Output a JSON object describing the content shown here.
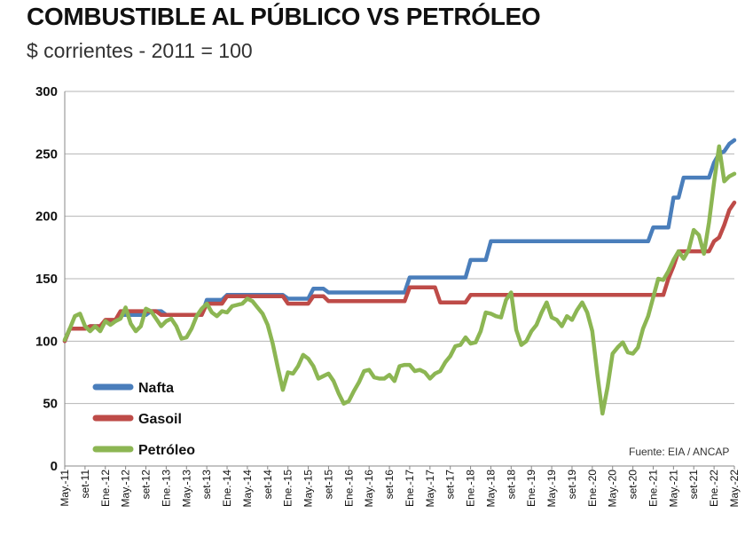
{
  "title": "COMBUSTIBLE AL PÚBLICO VS PETRÓLEO",
  "subtitle": "$ corrientes - 2011 = 100",
  "source": "Fuente: EIA / ANCAP",
  "chart_data": {
    "type": "line",
    "ylim": [
      0,
      300
    ],
    "yticks": [
      0,
      50,
      100,
      150,
      200,
      250,
      300
    ],
    "xlim": [
      "2011-05",
      "2022-05"
    ],
    "xtick_labels": [
      "May.-11",
      "set-11",
      "Ene.-12",
      "May.-12",
      "set-12",
      "Ene.-13",
      "May.-13",
      "set-13",
      "Ene.-14",
      "May.-14",
      "set-14",
      "Ene.-15",
      "May.-15",
      "set-15",
      "Ene.-16",
      "May.-16",
      "set-16",
      "Ene.-17",
      "May.-17",
      "set-17",
      "Ene.-18",
      "May.-18",
      "set-18",
      "Ene.-19",
      "May.-19",
      "set-19",
      "Ene.-20",
      "May.-20",
      "set-20",
      "Ene.-21",
      "May.-21",
      "set-21",
      "Ene.-22",
      "May.-22"
    ],
    "grid": true,
    "legend_position": "bottom-left",
    "series": [
      {
        "name": "Nafta",
        "color": "#4a7ebb",
        "points": [
          [
            "2011-05",
            100
          ],
          [
            "2011-06",
            110
          ],
          [
            "2011-09",
            110
          ],
          [
            "2011-10",
            112
          ],
          [
            "2011-12",
            112
          ],
          [
            "2012-01",
            116
          ],
          [
            "2012-03",
            116
          ],
          [
            "2012-04",
            121
          ],
          [
            "2012-09",
            121
          ],
          [
            "2012-10",
            124
          ],
          [
            "2012-12",
            124
          ],
          [
            "2013-01",
            121
          ],
          [
            "2013-08",
            121
          ],
          [
            "2013-09",
            133
          ],
          [
            "2013-12",
            133
          ],
          [
            "2014-01",
            137
          ],
          [
            "2014-12",
            137
          ],
          [
            "2015-01",
            134
          ],
          [
            "2015-05",
            134
          ],
          [
            "2015-06",
            142
          ],
          [
            "2015-08",
            142
          ],
          [
            "2015-09",
            139
          ],
          [
            "2016-12",
            139
          ],
          [
            "2017-01",
            151
          ],
          [
            "2017-12",
            151
          ],
          [
            "2018-01",
            165
          ],
          [
            "2018-04",
            165
          ],
          [
            "2018-05",
            180
          ],
          [
            "2020-12",
            180
          ],
          [
            "2021-01",
            191
          ],
          [
            "2021-04",
            191
          ],
          [
            "2021-05",
            215
          ],
          [
            "2021-06",
            215
          ],
          [
            "2021-07",
            231
          ],
          [
            "2021-12",
            231
          ],
          [
            "2022-01",
            243
          ],
          [
            "2022-02",
            250
          ],
          [
            "2022-03",
            252
          ],
          [
            "2022-04",
            258
          ],
          [
            "2022-05",
            261
          ]
        ]
      },
      {
        "name": "Gasoil",
        "color": "#be4b48",
        "points": [
          [
            "2011-05",
            100
          ],
          [
            "2011-06",
            110
          ],
          [
            "2011-09",
            110
          ],
          [
            "2011-10",
            112
          ],
          [
            "2011-12",
            112
          ],
          [
            "2012-01",
            117
          ],
          [
            "2012-03",
            117
          ],
          [
            "2012-04",
            124
          ],
          [
            "2012-11",
            124
          ],
          [
            "2012-12",
            121
          ],
          [
            "2013-08",
            121
          ],
          [
            "2013-09",
            130
          ],
          [
            "2013-12",
            130
          ],
          [
            "2014-01",
            136
          ],
          [
            "2014-12",
            136
          ],
          [
            "2015-01",
            130
          ],
          [
            "2015-05",
            130
          ],
          [
            "2015-06",
            136
          ],
          [
            "2015-08",
            136
          ],
          [
            "2015-09",
            132
          ],
          [
            "2016-12",
            132
          ],
          [
            "2017-01",
            143
          ],
          [
            "2017-06",
            143
          ],
          [
            "2017-07",
            131
          ],
          [
            "2017-12",
            131
          ],
          [
            "2018-01",
            137
          ],
          [
            "2021-03",
            137
          ],
          [
            "2021-04",
            150
          ],
          [
            "2021-05",
            160
          ],
          [
            "2021-06",
            172
          ],
          [
            "2021-12",
            172
          ],
          [
            "2022-01",
            180
          ],
          [
            "2022-02",
            183
          ],
          [
            "2022-03",
            193
          ],
          [
            "2022-04",
            205
          ],
          [
            "2022-05",
            211
          ]
        ]
      },
      {
        "name": "Petróleo",
        "color": "#8cb653",
        "points": [
          [
            "2011-05",
            101
          ],
          [
            "2011-06",
            110
          ],
          [
            "2011-07",
            120
          ],
          [
            "2011-08",
            122
          ],
          [
            "2011-09",
            112
          ],
          [
            "2011-10",
            108
          ],
          [
            "2011-11",
            112
          ],
          [
            "2011-12",
            108
          ],
          [
            "2012-01",
            116
          ],
          [
            "2012-02",
            113
          ],
          [
            "2012-03",
            116
          ],
          [
            "2012-04",
            118
          ],
          [
            "2012-05",
            127
          ],
          [
            "2012-06",
            114
          ],
          [
            "2012-07",
            108
          ],
          [
            "2012-08",
            112
          ],
          [
            "2012-09",
            126
          ],
          [
            "2012-10",
            124
          ],
          [
            "2012-11",
            118
          ],
          [
            "2012-12",
            112
          ],
          [
            "2013-01",
            116
          ],
          [
            "2013-02",
            118
          ],
          [
            "2013-03",
            112
          ],
          [
            "2013-04",
            102
          ],
          [
            "2013-05",
            103
          ],
          [
            "2013-06",
            110
          ],
          [
            "2013-07",
            120
          ],
          [
            "2013-08",
            126
          ],
          [
            "2013-09",
            130
          ],
          [
            "2013-10",
            123
          ],
          [
            "2013-11",
            120
          ],
          [
            "2013-12",
            124
          ],
          [
            "2014-01",
            123
          ],
          [
            "2014-02",
            128
          ],
          [
            "2014-03",
            129
          ],
          [
            "2014-04",
            130
          ],
          [
            "2014-05",
            134
          ],
          [
            "2014-06",
            132
          ],
          [
            "2014-07",
            127
          ],
          [
            "2014-08",
            122
          ],
          [
            "2014-09",
            113
          ],
          [
            "2014-10",
            98
          ],
          [
            "2014-11",
            79
          ],
          [
            "2014-12",
            61
          ],
          [
            "2015-01",
            75
          ],
          [
            "2015-02",
            74
          ],
          [
            "2015-03",
            80
          ],
          [
            "2015-04",
            89
          ],
          [
            "2015-05",
            86
          ],
          [
            "2015-06",
            80
          ],
          [
            "2015-07",
            70
          ],
          [
            "2015-08",
            72
          ],
          [
            "2015-09",
            74
          ],
          [
            "2015-10",
            68
          ],
          [
            "2015-11",
            58
          ],
          [
            "2015-12",
            50
          ],
          [
            "2016-01",
            52
          ],
          [
            "2016-02",
            60
          ],
          [
            "2016-03",
            67
          ],
          [
            "2016-04",
            76
          ],
          [
            "2016-05",
            77
          ],
          [
            "2016-06",
            71
          ],
          [
            "2016-07",
            70
          ],
          [
            "2016-08",
            70
          ],
          [
            "2016-09",
            73
          ],
          [
            "2016-10",
            68
          ],
          [
            "2016-11",
            80
          ],
          [
            "2016-12",
            81
          ],
          [
            "2017-01",
            81
          ],
          [
            "2017-02",
            76
          ],
          [
            "2017-03",
            77
          ],
          [
            "2017-04",
            75
          ],
          [
            "2017-05",
            70
          ],
          [
            "2017-06",
            74
          ],
          [
            "2017-07",
            76
          ],
          [
            "2017-08",
            83
          ],
          [
            "2017-09",
            88
          ],
          [
            "2017-10",
            96
          ],
          [
            "2017-11",
            97
          ],
          [
            "2017-12",
            103
          ],
          [
            "2018-01",
            98
          ],
          [
            "2018-02",
            99
          ],
          [
            "2018-03",
            108
          ],
          [
            "2018-04",
            123
          ],
          [
            "2018-05",
            122
          ],
          [
            "2018-06",
            120
          ],
          [
            "2018-07",
            119
          ],
          [
            "2018-08",
            133
          ],
          [
            "2018-09",
            139
          ],
          [
            "2018-10",
            109
          ],
          [
            "2018-11",
            97
          ],
          [
            "2018-12",
            100
          ],
          [
            "2019-01",
            108
          ],
          [
            "2019-02",
            113
          ],
          [
            "2019-03",
            123
          ],
          [
            "2019-04",
            131
          ],
          [
            "2019-05",
            119
          ],
          [
            "2019-06",
            117
          ],
          [
            "2019-07",
            112
          ],
          [
            "2019-08",
            120
          ],
          [
            "2019-09",
            117
          ],
          [
            "2019-10",
            125
          ],
          [
            "2019-11",
            131
          ],
          [
            "2019-12",
            123
          ],
          [
            "2020-01",
            108
          ],
          [
            "2020-02",
            73
          ],
          [
            "2020-03",
            42
          ],
          [
            "2020-04",
            63
          ],
          [
            "2020-05",
            90
          ],
          [
            "2020-06",
            95
          ],
          [
            "2020-07",
            99
          ],
          [
            "2020-08",
            91
          ],
          [
            "2020-09",
            90
          ],
          [
            "2020-10",
            95
          ],
          [
            "2020-11",
            110
          ],
          [
            "2020-12",
            120
          ],
          [
            "2021-01",
            135
          ],
          [
            "2021-02",
            150
          ],
          [
            "2021-03",
            149
          ],
          [
            "2021-04",
            156
          ],
          [
            "2021-05",
            165
          ],
          [
            "2021-06",
            172
          ],
          [
            "2021-07",
            166
          ],
          [
            "2021-08",
            173
          ],
          [
            "2021-09",
            189
          ],
          [
            "2021-10",
            185
          ],
          [
            "2021-11",
            170
          ],
          [
            "2021-12",
            195
          ],
          [
            "2022-01",
            227
          ],
          [
            "2022-02",
            256
          ],
          [
            "2022-03",
            228
          ],
          [
            "2022-04",
            232
          ],
          [
            "2022-05",
            234
          ]
        ]
      }
    ]
  }
}
